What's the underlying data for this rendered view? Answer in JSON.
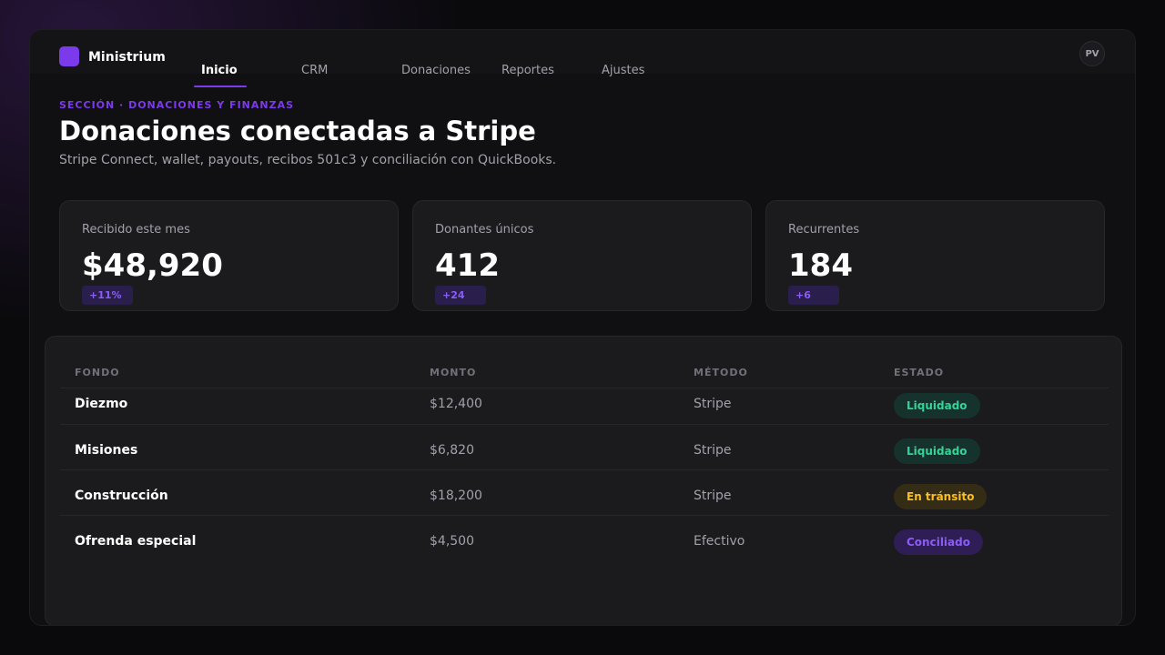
{
  "app": {
    "brand": "Ministrium",
    "avatar_initials": "PV",
    "accent": "#7c3aed"
  },
  "nav": {
    "tabs": [
      {
        "label": "Inicio",
        "active": true
      },
      {
        "label": "CRM",
        "active": false
      },
      {
        "label": "Donaciones",
        "active": false
      },
      {
        "label": "Reportes",
        "active": false
      },
      {
        "label": "Ajustes",
        "active": false
      }
    ]
  },
  "header": {
    "section": "SECCIÓN · DONACIONES Y FINANZAS",
    "title": "Donaciones conectadas a Stripe",
    "subtitle": "Stripe Connect, wallet, payouts, recibos 501c3 y conciliación con QuickBooks."
  },
  "stats": [
    {
      "label": "Recibido este mes",
      "value": "$48,920",
      "delta": "+11%"
    },
    {
      "label": "Donantes únicos",
      "value": "412",
      "delta": "+24"
    },
    {
      "label": "Recurrentes",
      "value": "184",
      "delta": "+6"
    }
  ],
  "table": {
    "columns": [
      "FONDO",
      "MONTO",
      "MÉTODO",
      "ESTADO"
    ],
    "rows": [
      {
        "fund": "Diezmo",
        "amount": "$12,400",
        "method": "Stripe",
        "status": "Liquidado"
      },
      {
        "fund": "Misiones",
        "amount": "$6,820",
        "method": "Stripe",
        "status": "Liquidado"
      },
      {
        "fund": "Construcción",
        "amount": "$18,200",
        "method": "Stripe",
        "status": "En tránsito"
      },
      {
        "fund": "Ofrenda especial",
        "amount": "$4,500",
        "method": "Efectivo",
        "status": "Conciliado"
      }
    ]
  },
  "status_colors": {
    "Liquidado": {
      "text": "#34d399",
      "bg": "#16322c"
    },
    "En tránsito": {
      "text": "#fbbf24",
      "bg": "#352c15"
    },
    "Conciliado": {
      "text": "#8b5cf6",
      "bg": "#2e1e55"
    }
  }
}
